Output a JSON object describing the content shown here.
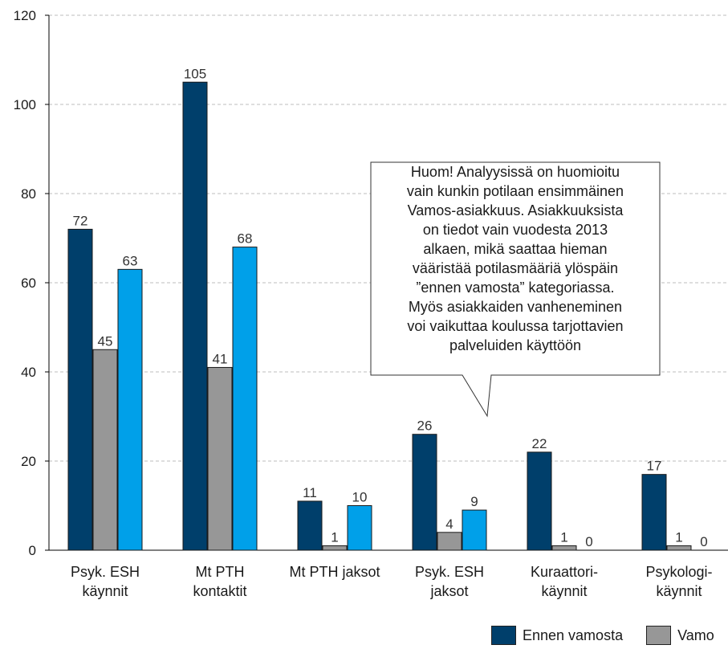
{
  "colors": {
    "series_0": "#003f6b",
    "series_1": "#979797",
    "series_2": "#00a0e9",
    "grid": "#bdbdbd",
    "axis": "#000000"
  },
  "chart_data": {
    "type": "bar",
    "categories": [
      [
        "Psyk. ESH",
        "käynnit"
      ],
      [
        "Mt PTH",
        "kontaktit"
      ],
      [
        "Mt PTH jaksot"
      ],
      [
        "Psyk. ESH",
        "jaksot"
      ],
      [
        "Kuraattori-",
        "käynnit"
      ],
      [
        "Psykologi-",
        "käynnit"
      ]
    ],
    "series": [
      {
        "name": "Ennen vamosta",
        "values": [
          72,
          105,
          11,
          26,
          22,
          17
        ]
      },
      {
        "name": "Vamo",
        "values": [
          45,
          41,
          1,
          4,
          1,
          1
        ]
      },
      {
        "name": "",
        "values": [
          63,
          68,
          10,
          9,
          0,
          0
        ]
      }
    ],
    "ylim": [
      0,
      120
    ],
    "yticks": [
      0,
      20,
      40,
      60,
      80,
      100,
      120
    ],
    "grid": true,
    "legend": "bottom-right",
    "annotation": [
      "Huom! Analyysissä on huomioitu",
      "vain kunkin potilaan ensimmäinen",
      "Vamos-asiakkuus. Asiakkuuksista",
      "on tiedot vain vuodesta 2013",
      "alkaen, mikä saattaa hieman",
      "vääristää potilasmääriä ylöspäin",
      "”ennen vamosta” kategoriassa.",
      "Myös asiakkaiden vanheneminen",
      "voi vaikuttaa koulussa tarjottavien",
      "palveluiden käyttöön"
    ]
  }
}
